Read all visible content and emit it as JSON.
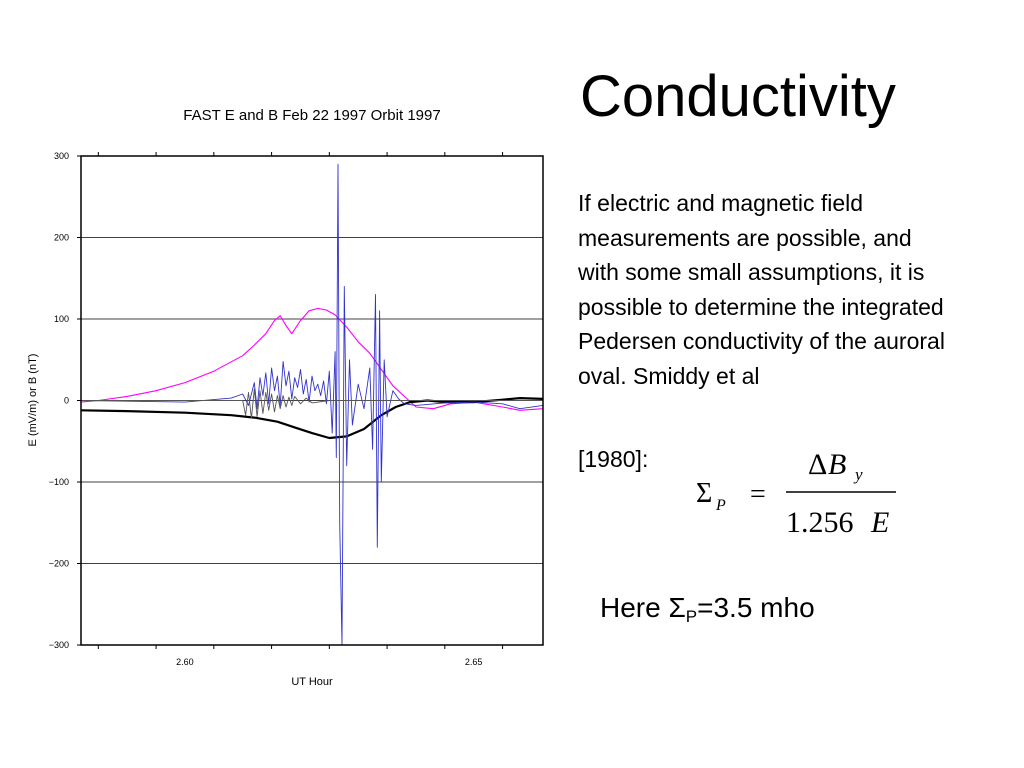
{
  "slide": {
    "title": "Conductivity",
    "body": "If electric and magnetic field measurements are possible, and with some small assumptions, it is possible to determine the integrated Pedersen conductivity of the auroral oval. Smiddy et al",
    "reference": "[1980]:",
    "result_prefix": "Here Σ",
    "result_sub": "P",
    "result_suffix": "=3.5 mho"
  },
  "equation": {
    "lhs_symbol": "Σ",
    "lhs_sub": "P",
    "equals": "=",
    "numerator_delta": "Δ",
    "numerator_var": "B",
    "numerator_sub": "y",
    "denominator_const": "1.256",
    "denominator_var": "E"
  },
  "chart_data": {
    "type": "line",
    "title": "FAST E and B Feb 22 1997 Orbit 1997",
    "xlabel": "UT Hour",
    "ylabel": "E (mV/m) or B (nT)",
    "xlim": [
      2.582,
      2.662
    ],
    "ylim": [
      -300,
      300
    ],
    "x_ticks": [
      2.6,
      2.65
    ],
    "x_tick_labels": [
      "2.60",
      "2.65"
    ],
    "y_ticks": [
      300,
      200,
      100,
      0,
      -100,
      -200,
      -300
    ],
    "y_tick_labels": [
      "300",
      "200",
      "100",
      "0",
      "−100",
      "−200",
      "−300"
    ],
    "grid": "horizontal",
    "series": [
      {
        "color": "#ff00ff",
        "points": [
          [
            2.582,
            -2
          ],
          [
            2.585,
            0
          ],
          [
            2.59,
            5
          ],
          [
            2.595,
            12
          ],
          [
            2.6,
            22
          ],
          [
            2.605,
            36
          ],
          [
            2.61,
            55
          ],
          [
            2.612,
            68
          ],
          [
            2.614,
            82
          ],
          [
            2.6155,
            98
          ],
          [
            2.6165,
            104
          ],
          [
            2.6175,
            92
          ],
          [
            2.6185,
            82
          ],
          [
            2.62,
            98
          ],
          [
            2.6215,
            110
          ],
          [
            2.623,
            113
          ],
          [
            2.6245,
            111
          ],
          [
            2.626,
            105
          ],
          [
            2.628,
            90
          ],
          [
            2.63,
            72
          ],
          [
            2.632,
            58
          ],
          [
            2.634,
            38
          ],
          [
            2.636,
            18
          ],
          [
            2.638,
            5
          ],
          [
            2.64,
            -8
          ],
          [
            2.643,
            -10
          ],
          [
            2.646,
            -4
          ],
          [
            2.65,
            -2
          ],
          [
            2.655,
            -8
          ],
          [
            2.658,
            -12
          ],
          [
            2.662,
            -10
          ]
        ]
      },
      {
        "color": "#000000",
        "points": [
          [
            2.582,
            -12
          ],
          [
            2.59,
            -13
          ],
          [
            2.6,
            -15
          ],
          [
            2.608,
            -18
          ],
          [
            2.612,
            -21
          ],
          [
            2.616,
            -26
          ],
          [
            2.619,
            -33
          ],
          [
            2.622,
            -40
          ],
          [
            2.625,
            -46
          ],
          [
            2.628,
            -44
          ],
          [
            2.631,
            -35
          ],
          [
            2.634,
            -18
          ],
          [
            2.6365,
            -8
          ],
          [
            2.639,
            -2
          ],
          [
            2.642,
            0
          ],
          [
            2.645,
            -2
          ],
          [
            2.65,
            -2
          ],
          [
            2.655,
            1
          ],
          [
            2.658,
            3
          ],
          [
            2.662,
            2
          ]
        ]
      },
      {
        "color": "#3333cc",
        "points": [
          [
            2.582,
            0
          ],
          [
            2.6,
            -2
          ],
          [
            2.608,
            3
          ],
          [
            2.61,
            8
          ],
          [
            2.611,
            -6
          ],
          [
            2.612,
            22
          ],
          [
            2.6125,
            -10
          ],
          [
            2.613,
            28
          ],
          [
            2.6135,
            6
          ],
          [
            2.614,
            34
          ],
          [
            2.6145,
            -4
          ],
          [
            2.615,
            40
          ],
          [
            2.6155,
            12
          ],
          [
            2.616,
            30
          ],
          [
            2.6165,
            -6
          ],
          [
            2.617,
            48
          ],
          [
            2.6175,
            18
          ],
          [
            2.618,
            36
          ],
          [
            2.6185,
            2
          ],
          [
            2.619,
            28
          ],
          [
            2.6195,
            16
          ],
          [
            2.62,
            38
          ],
          [
            2.6205,
            8
          ],
          [
            2.621,
            26
          ],
          [
            2.6215,
            -2
          ],
          [
            2.622,
            30
          ],
          [
            2.6225,
            12
          ],
          [
            2.623,
            20
          ],
          [
            2.6235,
            6
          ],
          [
            2.624,
            24
          ],
          [
            2.6245,
            -4
          ],
          [
            2.625,
            36
          ],
          [
            2.6255,
            -40
          ],
          [
            2.626,
            60
          ],
          [
            2.6262,
            -70
          ],
          [
            2.6265,
            290
          ],
          [
            2.6268,
            -150
          ],
          [
            2.6272,
            -300
          ],
          [
            2.6276,
            140
          ],
          [
            2.628,
            -80
          ],
          [
            2.6285,
            50
          ],
          [
            2.629,
            -30
          ],
          [
            2.63,
            20
          ],
          [
            2.631,
            -10
          ],
          [
            2.632,
            40
          ],
          [
            2.6325,
            -60
          ],
          [
            2.633,
            130
          ],
          [
            2.6333,
            -180
          ],
          [
            2.6337,
            110
          ],
          [
            2.634,
            -100
          ],
          [
            2.6345,
            50
          ],
          [
            2.635,
            -20
          ],
          [
            2.636,
            12
          ],
          [
            2.637,
            2
          ],
          [
            2.638,
            -4
          ],
          [
            2.64,
            -6
          ],
          [
            2.645,
            -3
          ],
          [
            2.65,
            -2
          ],
          [
            2.655,
            -4
          ],
          [
            2.658,
            -10
          ],
          [
            2.662,
            -6
          ]
        ]
      },
      {
        "color": "#555555",
        "points": [
          [
            2.582,
            0
          ],
          [
            2.61,
            0
          ],
          [
            2.6105,
            -18
          ],
          [
            2.611,
            10
          ],
          [
            2.6115,
            -22
          ],
          [
            2.612,
            14
          ],
          [
            2.6125,
            -20
          ],
          [
            2.613,
            12
          ],
          [
            2.6135,
            -16
          ],
          [
            2.614,
            10
          ],
          [
            2.6145,
            -12
          ],
          [
            2.615,
            8
          ],
          [
            2.6155,
            -14
          ],
          [
            2.616,
            6
          ],
          [
            2.6165,
            -10
          ],
          [
            2.617,
            6
          ],
          [
            2.6175,
            -8
          ],
          [
            2.618,
            4
          ],
          [
            2.6185,
            -6
          ],
          [
            2.619,
            5
          ],
          [
            2.62,
            -4
          ],
          [
            2.621,
            3
          ],
          [
            2.622,
            -3
          ],
          [
            2.625,
            0
          ],
          [
            2.64,
            0
          ],
          [
            2.662,
            0
          ]
        ]
      }
    ]
  }
}
